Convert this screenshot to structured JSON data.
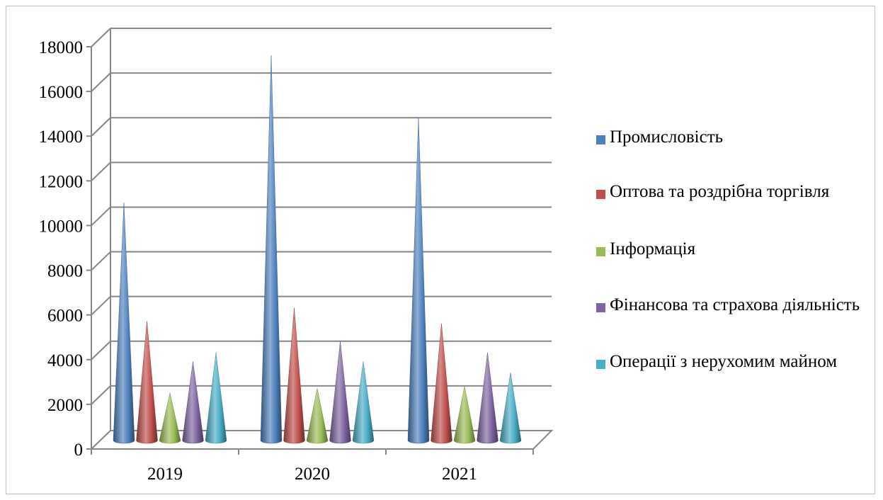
{
  "chart_data": {
    "type": "bar",
    "bar_shape": "cone",
    "categories": [
      "2019",
      "2020",
      "2021"
    ],
    "series": [
      {
        "name": "Промисловість",
        "color": "#4f81bd",
        "values": [
          10700,
          17300,
          14500
        ]
      },
      {
        "name": "Оптова та роздрібна торгівля",
        "color": "#c0504d",
        "values": [
          5400,
          6000,
          5300
        ]
      },
      {
        "name": "Інформація",
        "color": "#9bbb59",
        "values": [
          2200,
          2400,
          2500
        ]
      },
      {
        "name": "Фінансова та страхова діяльність",
        "color": "#8064a2",
        "values": [
          3600,
          4500,
          4000
        ]
      },
      {
        "name": "Операції з нерухомим майном",
        "color": "#4bacc6",
        "values": [
          4000,
          3600,
          3100
        ]
      }
    ],
    "y_ticks": [
      "0",
      "2000",
      "4000",
      "6000",
      "8000",
      "10000",
      "12000",
      "14000",
      "16000",
      "18000"
    ],
    "ylim": [
      0,
      18000
    ],
    "grid": true,
    "legend_position": "right"
  }
}
